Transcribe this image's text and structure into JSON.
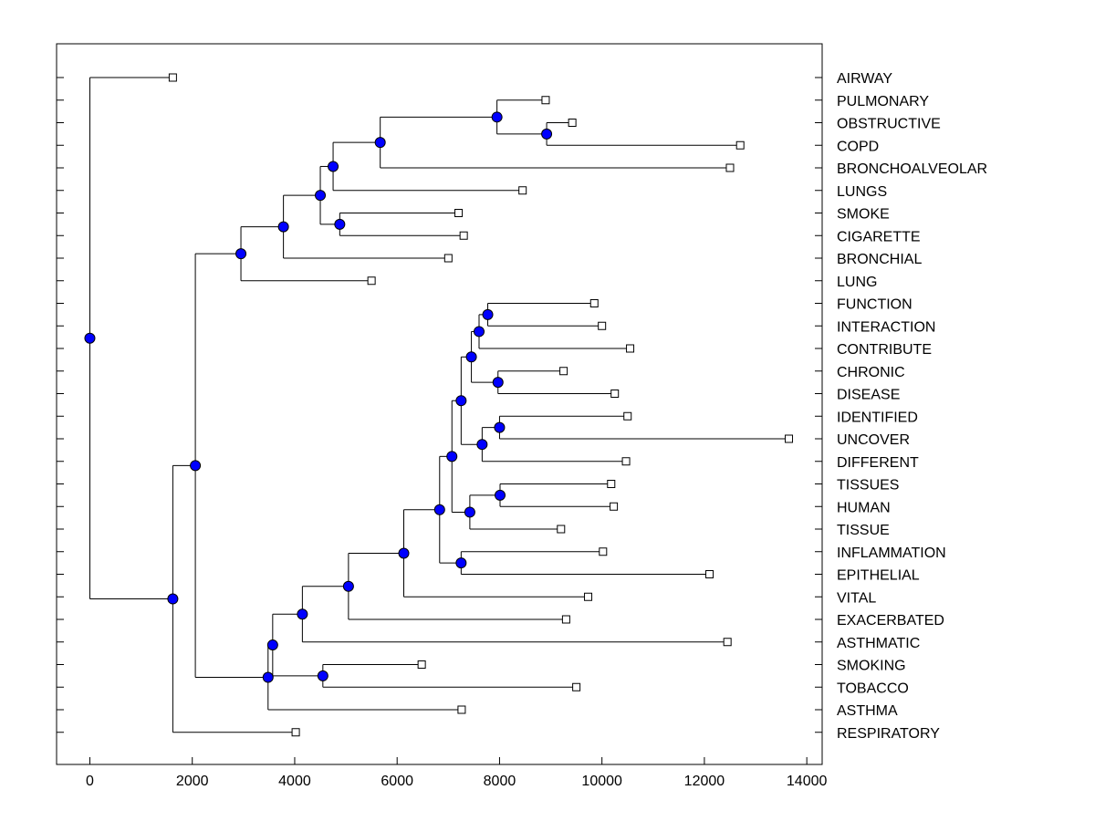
{
  "chart_data": {
    "type": "dendrogram",
    "title": "",
    "xlabel": "",
    "ylabel": "",
    "xlim": [
      -650,
      14300
    ],
    "x_ticks": [
      0,
      2000,
      4000,
      6000,
      8000,
      10000,
      12000,
      14000
    ],
    "x_tick_labels": [
      "0",
      "2000",
      "4000",
      "6000",
      "8000",
      "10000",
      "12000",
      "14000"
    ],
    "colors": {
      "node_fill": "#0000ff",
      "line": "#000000",
      "leaf_fill": "#ffffff"
    },
    "leaves": [
      {
        "label": "AIRWAY",
        "value": 1620
      },
      {
        "label": "PULMONARY",
        "value": 8900
      },
      {
        "label": "OBSTRUCTIVE",
        "value": 9420
      },
      {
        "label": "COPD",
        "value": 12700
      },
      {
        "label": "BRONCHOALVEOLAR",
        "value": 12500
      },
      {
        "label": "LUNGS",
        "value": 8450
      },
      {
        "label": "SMOKE",
        "value": 7200
      },
      {
        "label": "CIGARETTE",
        "value": 7300
      },
      {
        "label": "BRONCHIAL",
        "value": 7000
      },
      {
        "label": "LUNG",
        "value": 5500
      },
      {
        "label": "FUNCTION",
        "value": 9850
      },
      {
        "label": "INTERACTION",
        "value": 10000
      },
      {
        "label": "CONTRIBUTE",
        "value": 10550
      },
      {
        "label": "CHRONIC",
        "value": 9250
      },
      {
        "label": "DISEASE",
        "value": 10250
      },
      {
        "label": "IDENTIFIED",
        "value": 10500
      },
      {
        "label": "UNCOVER",
        "value": 13650
      },
      {
        "label": "DIFFERENT",
        "value": 10470
      },
      {
        "label": "TISSUES",
        "value": 10180
      },
      {
        "label": "HUMAN",
        "value": 10230
      },
      {
        "label": "TISSUE",
        "value": 9200
      },
      {
        "label": "INFLAMMATION",
        "value": 10020
      },
      {
        "label": "EPITHELIAL",
        "value": 12100
      },
      {
        "label": "VITAL",
        "value": 9730
      },
      {
        "label": "EXACERBATED",
        "value": 9300
      },
      {
        "label": "ASTHMATIC",
        "value": 12450
      },
      {
        "label": "SMOKING",
        "value": 6480
      },
      {
        "label": "TOBACCO",
        "value": 9500
      },
      {
        "label": "ASTHMA",
        "value": 7260
      },
      {
        "label": "RESPIRATORY",
        "value": 4020
      }
    ],
    "merges": [
      {
        "id": "n1",
        "x": 8920,
        "children": [
          "OBSTRUCTIVE",
          "COPD"
        ]
      },
      {
        "id": "n2",
        "x": 7950,
        "children": [
          "PULMONARY",
          "n1"
        ]
      },
      {
        "id": "n3",
        "x": 5670,
        "children": [
          "n2",
          "BRONCHOALVEOLAR"
        ]
      },
      {
        "id": "n4",
        "x": 4750,
        "children": [
          "n3",
          "LUNGS"
        ]
      },
      {
        "id": "n5",
        "x": 4880,
        "children": [
          "SMOKE",
          "CIGARETTE"
        ]
      },
      {
        "id": "n6",
        "x": 4500,
        "children": [
          "n4",
          "n5"
        ]
      },
      {
        "id": "n7",
        "x": 3780,
        "children": [
          "n6",
          "BRONCHIAL"
        ]
      },
      {
        "id": "n8",
        "x": 2950,
        "children": [
          "n7",
          "LUNG"
        ]
      },
      {
        "id": "n9",
        "x": 7770,
        "children": [
          "FUNCTION",
          "INTERACTION"
        ]
      },
      {
        "id": "n10",
        "x": 7600,
        "children": [
          "n9",
          "CONTRIBUTE"
        ]
      },
      {
        "id": "n11",
        "x": 7970,
        "children": [
          "CHRONIC",
          "DISEASE"
        ]
      },
      {
        "id": "n12",
        "x": 7450,
        "children": [
          "n10",
          "n11"
        ]
      },
      {
        "id": "n13",
        "x": 8000,
        "children": [
          "IDENTIFIED",
          "UNCOVER"
        ]
      },
      {
        "id": "n14",
        "x": 7660,
        "children": [
          "n13",
          "DIFFERENT"
        ]
      },
      {
        "id": "n15",
        "x": 7250,
        "children": [
          "n12",
          "n14"
        ]
      },
      {
        "id": "n16",
        "x": 8010,
        "children": [
          "TISSUES",
          "HUMAN"
        ]
      },
      {
        "id": "n17",
        "x": 7420,
        "children": [
          "n16",
          "TISSUE"
        ]
      },
      {
        "id": "n18",
        "x": 7070,
        "children": [
          "n15",
          "n17"
        ]
      },
      {
        "id": "n19",
        "x": 7250,
        "children": [
          "INFLAMMATION",
          "EPITHELIAL"
        ]
      },
      {
        "id": "n20",
        "x": 6830,
        "children": [
          "n18",
          "n19"
        ]
      },
      {
        "id": "n21",
        "x": 6130,
        "children": [
          "n20",
          "VITAL"
        ]
      },
      {
        "id": "n22",
        "x": 5050,
        "children": [
          "n21",
          "EXACERBATED"
        ]
      },
      {
        "id": "n23",
        "x": 4150,
        "children": [
          "n22",
          "ASTHMATIC"
        ]
      },
      {
        "id": "n24",
        "x": 4550,
        "children": [
          "SMOKING",
          "TOBACCO"
        ]
      },
      {
        "id": "n25",
        "x": 3570,
        "children": [
          "n23",
          "n24"
        ]
      },
      {
        "id": "n26",
        "x": 3480,
        "children": [
          "n25",
          "ASTHMA"
        ]
      },
      {
        "id": "n27",
        "x": 2060,
        "children": [
          "n8",
          "n26"
        ]
      },
      {
        "id": "n28",
        "x": 1620,
        "children": [
          "n27",
          "RESPIRATORY"
        ]
      },
      {
        "id": "n29",
        "x": 0,
        "children": [
          "AIRWAY",
          "n28"
        ]
      }
    ]
  }
}
